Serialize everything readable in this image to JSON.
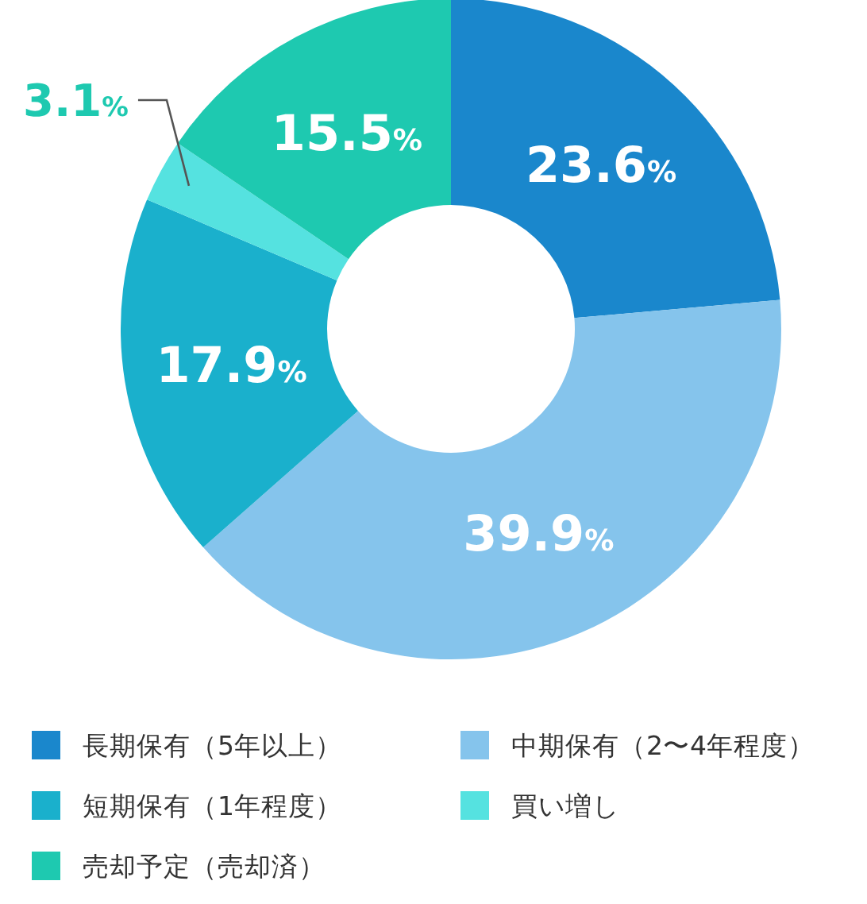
{
  "chart_data": {
    "type": "donut",
    "categories": [
      "長期保有（5年以上）",
      "中期保有（2〜4年程度）",
      "短期保有（1年程度）",
      "買い増し",
      "売却予定（売却済）"
    ],
    "values": [
      23.6,
      39.9,
      17.9,
      3.1,
      15.5
    ],
    "colors": [
      "#1a87cc",
      "#85c4ec",
      "#1ab0cc",
      "#55e2e0",
      "#1ec9b0"
    ],
    "value_labels": [
      "23.6%",
      "39.9%",
      "17.9%",
      "3.1%",
      "15.5%"
    ],
    "legend": "bottom"
  }
}
